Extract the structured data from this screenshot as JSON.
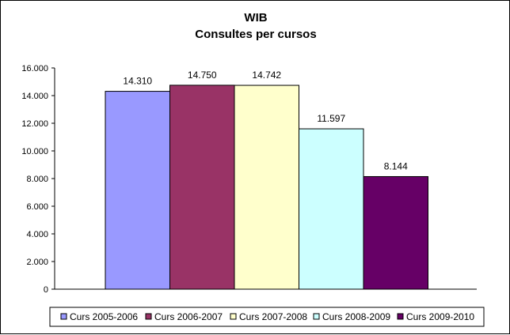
{
  "chart_data": {
    "type": "bar",
    "title": "WIB",
    "subtitle": "Consultes per cursos",
    "categories": [
      "Curs 2005-2006",
      "Curs 2006-2007",
      "Curs 2007-2008",
      "Curs 2008-2009",
      "Curs 2009-2010"
    ],
    "values": [
      14310,
      14750,
      14742,
      11597,
      8144
    ],
    "value_labels": [
      "14.310",
      "14.750",
      "14.742",
      "11.597",
      "8.144"
    ],
    "colors": [
      "#9999ff",
      "#993366",
      "#ffffcc",
      "#ccffff",
      "#660066"
    ],
    "ylim": [
      0,
      16000
    ],
    "yticks": [
      0,
      2000,
      4000,
      6000,
      8000,
      10000,
      12000,
      14000,
      16000
    ],
    "ytick_labels": [
      "0",
      "2.000",
      "4.000",
      "6.000",
      "8.000",
      "10.000",
      "12.000",
      "14.000",
      "16.000"
    ],
    "xlabel": "",
    "ylabel": "",
    "grid": false,
    "legend": "bottom"
  }
}
